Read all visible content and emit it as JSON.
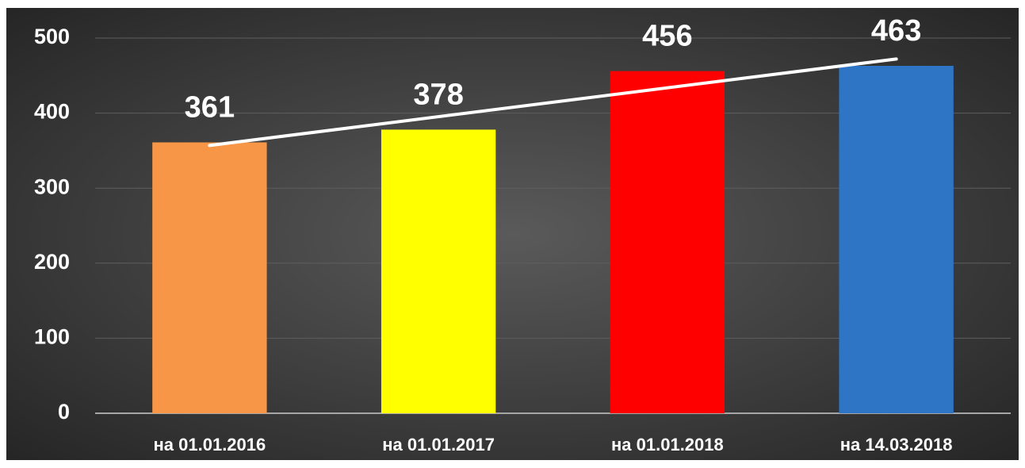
{
  "chart_data": {
    "type": "bar",
    "categories": [
      "на 01.01.2016",
      "на 01.01.2017",
      "на 01.01.2018",
      "на 14.03.2018"
    ],
    "values": [
      361,
      378,
      456,
      463
    ],
    "colors": [
      "#f79646",
      "#ffff00",
      "#ff0000",
      "#2e75c6"
    ],
    "ylim": [
      0,
      500
    ],
    "yticks": [
      0,
      100,
      200,
      300,
      400,
      500
    ],
    "grid": true,
    "trendline": "linear"
  }
}
